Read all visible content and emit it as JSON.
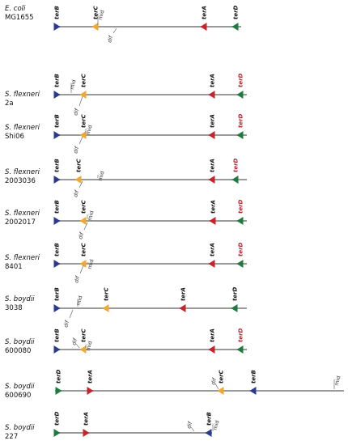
{
  "colors": {
    "terB": "#2b3a8f",
    "terC": "#f0a830",
    "terA": "#c8232c",
    "terD": "#1f7a3f",
    "line": "#9a9a9a",
    "label_red": "#b0232a"
  },
  "strains": [
    {
      "species": "E. coli",
      "strain": "MG1655",
      "markers": [
        {
          "type": "terB",
          "label": "terB",
          "dir": "right"
        },
        {
          "type": "terC",
          "label": "terC",
          "dir": "left"
        },
        {
          "type": "terA",
          "label": "terA",
          "dir": "left"
        },
        {
          "type": "terD",
          "label": "terD",
          "dir": "left"
        }
      ],
      "annots": [
        {
          "text": "mid",
          "italic": false
        },
        {
          "text": "dif",
          "italic": true
        }
      ]
    },
    {
      "species": "S. flexneri",
      "strain": "2a",
      "markers": [
        {
          "type": "terB",
          "label": "terB",
          "dir": "right"
        },
        {
          "type": "terC",
          "label": "terC",
          "dir": "left"
        },
        {
          "type": "terA",
          "label": "terA",
          "dir": "left"
        },
        {
          "type": "terD",
          "label": "terD",
          "dir": "left",
          "red": true
        }
      ],
      "annots": [
        {
          "text": "mid",
          "italic": false
        },
        {
          "text": "dif",
          "italic": true
        }
      ]
    },
    {
      "species": "S. flexneri",
      "strain": "Shi06",
      "markers": [
        {
          "type": "terB",
          "label": "terB",
          "dir": "right"
        },
        {
          "type": "terC",
          "label": "terC",
          "dir": "left"
        },
        {
          "type": "terA",
          "label": "terA",
          "dir": "left"
        },
        {
          "type": "terD",
          "label": "terD",
          "dir": "left",
          "red": true
        }
      ],
      "annots": [
        {
          "text": "mid",
          "italic": false
        },
        {
          "text": "dif",
          "italic": true
        }
      ]
    },
    {
      "species": "S. flexneri",
      "strain": "2003036",
      "markers": [
        {
          "type": "terB",
          "label": "terB",
          "dir": "right"
        },
        {
          "type": "terC",
          "label": "terC",
          "dir": "left"
        },
        {
          "type": "terA",
          "label": "terA",
          "dir": "left"
        },
        {
          "type": "terD",
          "label": "terD",
          "dir": "left",
          "red": true
        }
      ],
      "annots": [
        {
          "text": "mid",
          "italic": false
        },
        {
          "text": "dif",
          "italic": true
        }
      ]
    },
    {
      "species": "S. flexneri",
      "strain": "2002017",
      "markers": [
        {
          "type": "terB",
          "label": "terB",
          "dir": "right"
        },
        {
          "type": "terC",
          "label": "terC",
          "dir": "left"
        },
        {
          "type": "terA",
          "label": "terA",
          "dir": "left"
        },
        {
          "type": "terD",
          "label": "terD",
          "dir": "left",
          "red": true
        }
      ],
      "annots": [
        {
          "text": "mid",
          "italic": false
        },
        {
          "text": "dif",
          "italic": true
        }
      ]
    },
    {
      "species": "S. flexneri",
      "strain": "8401",
      "markers": [
        {
          "type": "terB",
          "label": "terB",
          "dir": "right"
        },
        {
          "type": "terC",
          "label": "terC",
          "dir": "left"
        },
        {
          "type": "terA",
          "label": "terA",
          "dir": "left"
        },
        {
          "type": "terD",
          "label": "terD",
          "dir": "left",
          "red": true
        }
      ],
      "annots": [
        {
          "text": "mid",
          "italic": false
        },
        {
          "text": "dif",
          "italic": true
        }
      ]
    },
    {
      "species": "S. boydii",
      "strain": "3038",
      "markers": [
        {
          "type": "terB",
          "label": "terB",
          "dir": "right"
        },
        {
          "type": "terC",
          "label": "terC",
          "dir": "left"
        },
        {
          "type": "terA",
          "label": "terA",
          "dir": "left"
        },
        {
          "type": "terD",
          "label": "terD",
          "dir": "left"
        }
      ],
      "annots": [
        {
          "text": "mid",
          "italic": false
        },
        {
          "text": "dif",
          "italic": true
        }
      ]
    },
    {
      "species": "S. boydii",
      "strain": "600080",
      "markers": [
        {
          "type": "terB",
          "label": "terB",
          "dir": "right"
        },
        {
          "type": "terC",
          "label": "terC",
          "dir": "left"
        },
        {
          "type": "terA",
          "label": "terA",
          "dir": "left"
        },
        {
          "type": "terD",
          "label": "terD",
          "dir": "left",
          "red": true
        }
      ],
      "annots": [
        {
          "text": "mid",
          "italic": false
        },
        {
          "text": "dif",
          "italic": true
        }
      ]
    },
    {
      "species": "S. boydii",
      "strain": "600690",
      "markers": [
        {
          "type": "terD",
          "label": "terD",
          "dir": "right"
        },
        {
          "type": "terA",
          "label": "terA",
          "dir": "right"
        },
        {
          "type": "terC",
          "label": "terC",
          "dir": "left"
        },
        {
          "type": "terB",
          "label": "terB",
          "dir": "left"
        }
      ],
      "annots": [
        {
          "text": "dif",
          "italic": true
        },
        {
          "text": "mid",
          "italic": false
        }
      ]
    },
    {
      "species": "S. boydii",
      "strain": "227",
      "markers": [
        {
          "type": "terD",
          "label": "terD",
          "dir": "right"
        },
        {
          "type": "terA",
          "label": "terA",
          "dir": "right"
        },
        {
          "type": "terB",
          "label": "terB",
          "dir": "left"
        }
      ],
      "annots": [
        {
          "text": "dif",
          "italic": true
        },
        {
          "text": "mid",
          "italic": false
        }
      ]
    }
  ]
}
